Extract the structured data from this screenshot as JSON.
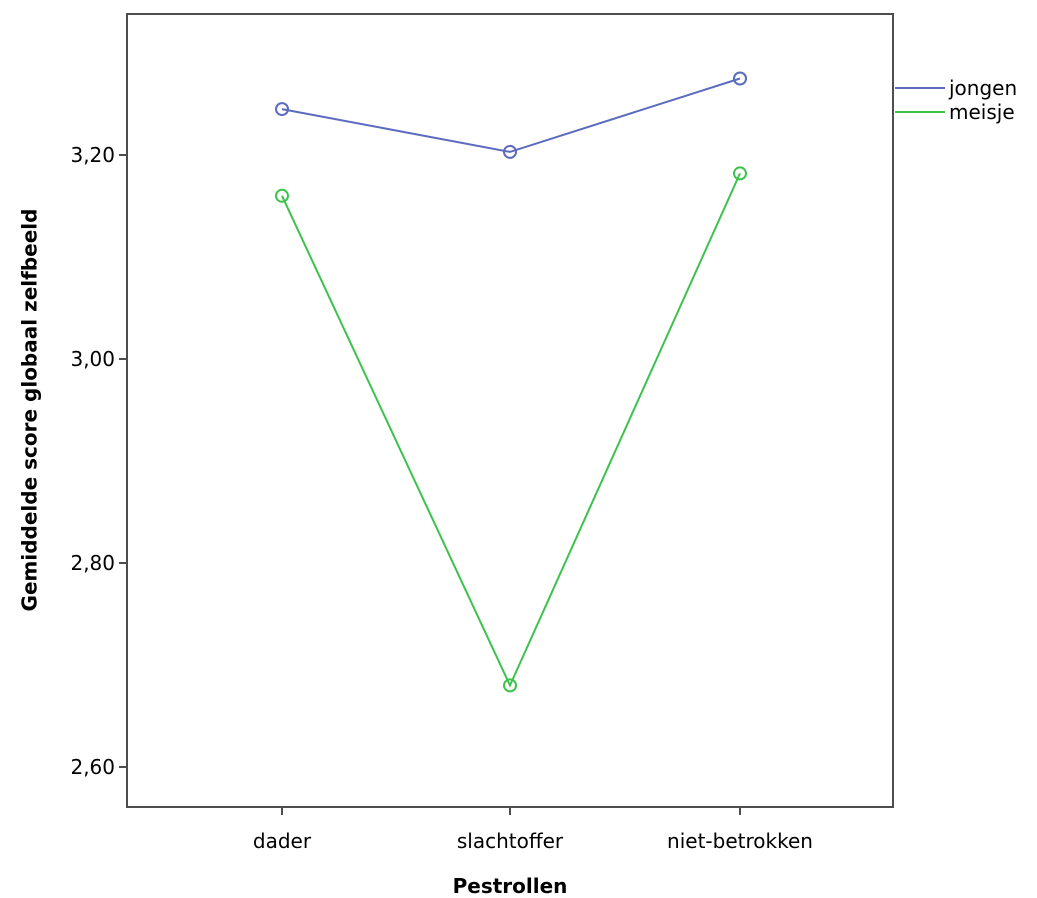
{
  "chart_data": {
    "type": "line",
    "categories": [
      "dader",
      "slachtoffer",
      "niet-betrokken"
    ],
    "series": [
      {
        "name": "jongen",
        "values": [
          3.245,
          3.203,
          3.275
        ],
        "color": "#5b6bbf"
      },
      {
        "name": "meisje",
        "values": [
          3.16,
          2.68,
          3.182
        ],
        "color": "#3cc24d"
      }
    ],
    "xlabel": "Pestrollen",
    "ylabel": "Gemiddelde score globaal zelfbeeld",
    "yticks": [
      "2,60",
      "2,80",
      "3,00",
      "3,20"
    ],
    "ytick_values": [
      2.6,
      2.8,
      3.0,
      3.2
    ],
    "ylim": [
      2.56,
      3.34
    ],
    "grid": false,
    "legend_position": "right",
    "marker": "open-circle"
  }
}
